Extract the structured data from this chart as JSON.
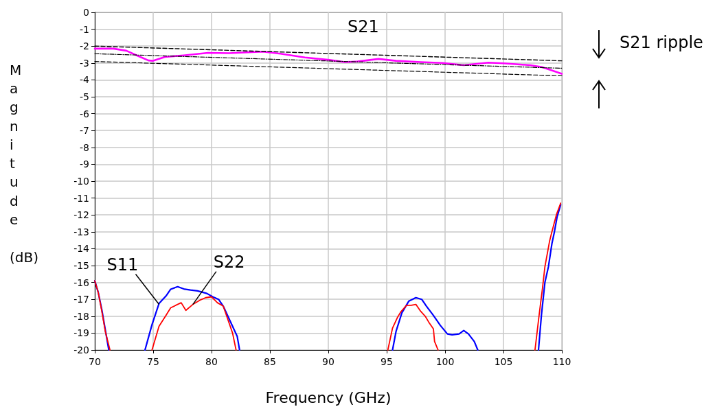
{
  "chart_data": {
    "type": "line",
    "xlabel": "Frequency (GHz)",
    "ylabel": "Magnitude (dB)",
    "xlim": [
      70,
      110
    ],
    "xticks": [
      70,
      75,
      80,
      85,
      90,
      95,
      100,
      105,
      110
    ],
    "ylim": [
      -20,
      0
    ],
    "yticks": [
      0,
      -1,
      -2,
      -3,
      -4,
      -5,
      -6,
      -7,
      -8,
      -9,
      -10,
      -11,
      -12,
      -13,
      -14,
      -15,
      -16,
      -17,
      -18,
      -19,
      -20
    ],
    "grid": true,
    "marker": "none",
    "series": [
      {
        "color": "#ff00ff",
        "x": [
          70,
          71.6,
          72.7,
          73.7,
          74.6,
          75,
          76,
          77.6,
          79.7,
          81.5,
          84.4,
          85.9,
          88,
          90.1,
          91.4,
          92.5,
          94.3,
          95.8,
          97.9,
          99.8,
          101.6,
          103.7,
          105,
          107.3,
          108.3,
          110
        ],
        "values": [
          -2.15,
          -2.15,
          -2.27,
          -2.58,
          -2.85,
          -2.87,
          -2.64,
          -2.55,
          -2.4,
          -2.42,
          -2.33,
          -2.45,
          -2.67,
          -2.82,
          -2.95,
          -2.91,
          -2.76,
          -2.87,
          -2.95,
          -3.0,
          -3.13,
          -2.98,
          -3.02,
          -3.13,
          -3.24,
          -3.64
        ]
      },
      {
        "color": "#0000ff",
        "x": [
          70,
          70.3,
          70.6,
          70.9,
          71.2,
          72,
          74.3,
          74.9,
          75.5,
          76.1,
          76.5,
          77.1,
          77.7,
          78.2,
          78.8,
          79.6,
          80.1,
          80.6,
          81,
          81.4,
          81.8,
          82.2,
          82.4,
          90,
          95.5,
          95.8,
          96.3,
          96.9,
          97.5,
          98,
          98.4,
          99,
          99.6,
          100.2,
          100.6,
          101.2,
          101.6,
          102,
          102.5,
          102.8,
          105,
          108,
          108.25,
          108.55,
          108.85,
          109.15,
          109.35,
          109.6,
          109.9
        ],
        "values": [
          -15.9,
          -16.6,
          -17.6,
          -18.8,
          -20,
          null,
          -20,
          -18.5,
          -17.25,
          -16.8,
          -16.4,
          -16.25,
          -16.4,
          -16.45,
          -16.5,
          -16.65,
          -16.85,
          -17.0,
          -17.4,
          -18.0,
          -18.6,
          -19.2,
          -20,
          null,
          -20,
          -18.9,
          -17.8,
          -17.1,
          -16.9,
          -17.0,
          -17.4,
          -17.95,
          -18.55,
          -19.05,
          -19.1,
          -19.05,
          -18.85,
          -19.05,
          -19.5,
          -20,
          null,
          -20,
          -17.95,
          -16.0,
          -15.07,
          -13.7,
          -13.05,
          -12.1,
          -11.4
        ]
      },
      {
        "color": "#ff0000",
        "x": [
          70,
          70.3,
          70.6,
          70.9,
          71.3,
          72,
          74.9,
          75.5,
          76.1,
          76.5,
          77.4,
          77.8,
          78.4,
          79,
          79.5,
          80,
          80.5,
          81,
          81.4,
          81.8,
          82.1,
          90,
          95.1,
          95.5,
          95.9,
          96.2,
          96.7,
          97.1,
          97.5,
          97.9,
          98.3,
          98.6,
          99,
          99.1,
          99.4,
          105,
          107.7,
          108.05,
          108.35,
          108.55,
          108.95,
          109.15,
          109.55,
          109.9
        ],
        "values": [
          -15.9,
          -16.6,
          -17.7,
          -18.9,
          -20,
          null,
          -20,
          -18.6,
          -17.95,
          -17.5,
          -17.2,
          -17.65,
          -17.3,
          -17.05,
          -16.9,
          -16.85,
          -17.2,
          -17.4,
          -18.2,
          -19.0,
          -20,
          null,
          -20,
          -18.7,
          -18.1,
          -17.75,
          -17.35,
          -17.35,
          -17.3,
          -17.7,
          -18.0,
          -18.35,
          -18.75,
          -19.5,
          -20,
          null,
          -20,
          -17.95,
          -16.3,
          -15.07,
          -13.55,
          -13.0,
          -11.95,
          -11.3
        ]
      },
      {
        "color": "#000000",
        "line_style": "dashed",
        "x": [
          70,
          110
        ],
        "values": [
          -2.0,
          -2.87
        ]
      },
      {
        "color": "#000000",
        "line_style": "dotted",
        "x": [
          70,
          110
        ],
        "values": [
          -2.45,
          -3.31
        ]
      },
      {
        "color": "#000000",
        "line_style": "dashed",
        "x": [
          70,
          110
        ],
        "values": [
          -2.91,
          -3.76
        ]
      }
    ],
    "annotations": [
      {
        "text": "S21",
        "x": 93,
        "y": -2.9
      },
      {
        "text": "S11",
        "x": 75.5,
        "y": -17.3
      },
      {
        "text": "S22",
        "x": 78.4,
        "y": -17.3
      },
      "S21 ripple"
    ]
  }
}
